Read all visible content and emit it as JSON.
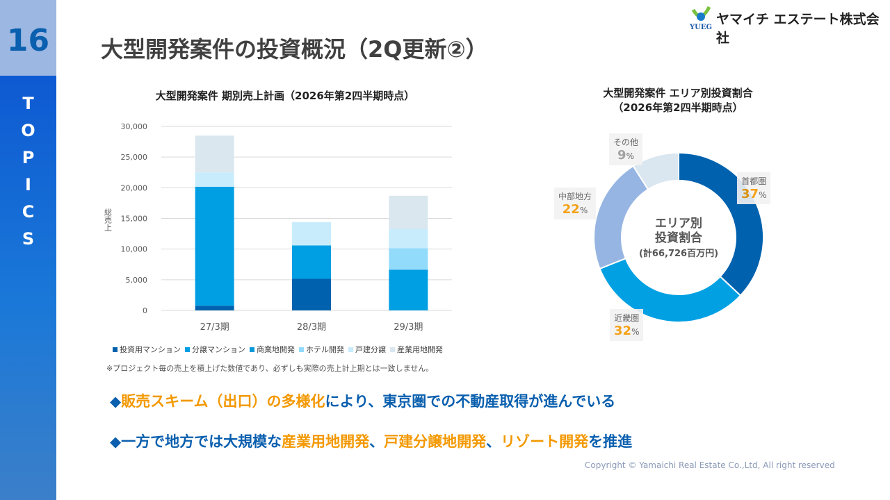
{
  "page_number": "16",
  "section": "TOPICS",
  "title": "大型開発案件の投資概況（2Q更新②）",
  "logo": {
    "mark": "YUEG",
    "company": "ヤマイチ エステート株式会社"
  },
  "chart_data": [
    {
      "type": "bar",
      "stacked": true,
      "title": "大型開発案件 期別売上計画（2026年第2四半期時点）",
      "ylabel": "総売上",
      "ylim": [
        0,
        30000
      ],
      "yticks": [
        "0",
        "5,000",
        "10,000",
        "15,000",
        "20,000",
        "25,000",
        "30,000"
      ],
      "grid": true,
      "legend_placement": "bottom",
      "categories": [
        "27/3期",
        "28/3期",
        "29/3期"
      ],
      "series": [
        {
          "name": "投資用マンション",
          "color": "#0062ae",
          "values": [
            750,
            5150,
            0
          ]
        },
        {
          "name": "分譲マンション",
          "color": "#009fe3",
          "values": [
            19400,
            5450,
            6650
          ]
        },
        {
          "name": "商業地開発",
          "color": "#0a9ad8",
          "values": [
            0,
            0,
            0
          ]
        },
        {
          "name": "ホテル開発",
          "color": "#93dbfb",
          "values": [
            0,
            0,
            3500
          ]
        },
        {
          "name": "戸建分譲",
          "color": "#c8ecfc",
          "values": [
            2350,
            3800,
            3150
          ]
        },
        {
          "name": "産業用地開発",
          "color": "#dae7ef",
          "values": [
            6000,
            0,
            5400
          ]
        }
      ],
      "note": "※プロジェクト毎の売上を積上げた数値であり、必ずしも実際の売上計上期とは一致しません。"
    },
    {
      "type": "pie",
      "donut": true,
      "title": "大型開発案件 エリア別投資割合",
      "subtitle": "（2026年第2四半期時点）",
      "center_label": [
        "エリア別",
        "投資割合"
      ],
      "center_total": "(計66,726百万円)",
      "slices": [
        {
          "label": "首都圏",
          "value": 37,
          "color": "#0062ae"
        },
        {
          "label": "近畿圏",
          "value": 32,
          "color": "#00a0e3"
        },
        {
          "label": "中部地方",
          "value": 22,
          "color": "#97b5e2"
        },
        {
          "label": "その他",
          "value": 9,
          "color": "#dae7f0"
        }
      ],
      "unit": "%"
    }
  ],
  "messages": [
    [
      {
        "t": "◆",
        "hl": false
      },
      {
        "t": "販売スキーム（出口）の多様化",
        "hl": true
      },
      {
        "t": "により、東京圏での不動産取得が進んでいる",
        "hl": false
      }
    ],
    [
      {
        "t": "◆一方で地方では大規模な",
        "hl": false
      },
      {
        "t": "産業用地開発",
        "hl": true
      },
      {
        "t": "、",
        "hl": false
      },
      {
        "t": "戸建分譲地開発",
        "hl": true
      },
      {
        "t": "、",
        "hl": false
      },
      {
        "t": "リゾート開発",
        "hl": true
      },
      {
        "t": "を推進",
        "hl": false
      }
    ]
  ],
  "copyright": "Copyright © Yamaichi Real Estate Co.,Ltd, All right reserved",
  "colors": {
    "accent": "#f39800",
    "brand": "#0a5fae"
  }
}
